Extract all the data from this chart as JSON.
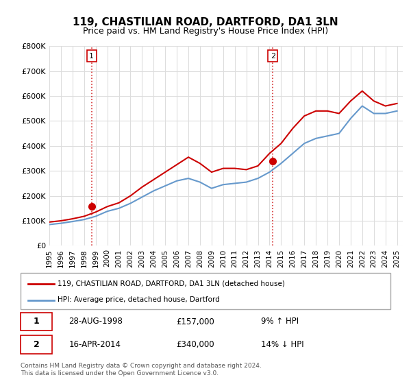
{
  "title": "119, CHASTILIAN ROAD, DARTFORD, DA1 3LN",
  "subtitle": "Price paid vs. HM Land Registry's House Price Index (HPI)",
  "ylabel_ticks": [
    "£0",
    "£100K",
    "£200K",
    "£300K",
    "£400K",
    "£500K",
    "£600K",
    "£700K",
    "£800K"
  ],
  "ytick_values": [
    0,
    100000,
    200000,
    300000,
    400000,
    500000,
    600000,
    700000,
    800000
  ],
  "ylim": [
    0,
    800000
  ],
  "xlim_start": 1995.0,
  "xlim_end": 2025.5,
  "sale1_x": 1998.65,
  "sale1_y": 157000,
  "sale1_label": "1",
  "sale2_x": 2014.29,
  "sale2_y": 340000,
  "sale2_label": "2",
  "line_color_red": "#cc0000",
  "line_color_blue": "#6699cc",
  "dot_color": "#cc0000",
  "grid_color": "#dddddd",
  "bg_color": "#ffffff",
  "legend_line1": "119, CHASTILIAN ROAD, DARTFORD, DA1 3LN (detached house)",
  "legend_line2": "HPI: Average price, detached house, Dartford",
  "table_row1_num": "1",
  "table_row1_date": "28-AUG-1998",
  "table_row1_price": "£157,000",
  "table_row1_hpi": "9% ↑ HPI",
  "table_row2_num": "2",
  "table_row2_date": "16-APR-2014",
  "table_row2_price": "£340,000",
  "table_row2_hpi": "14% ↓ HPI",
  "footer": "Contains HM Land Registry data © Crown copyright and database right 2024.\nThis data is licensed under the Open Government Licence v3.0.",
  "hpi_years": [
    1995,
    1996,
    1997,
    1998,
    1999,
    2000,
    2001,
    2002,
    2003,
    2004,
    2005,
    2006,
    2007,
    2008,
    2009,
    2010,
    2011,
    2012,
    2013,
    2014,
    2015,
    2016,
    2017,
    2018,
    2019,
    2020,
    2021,
    2022,
    2023,
    2024,
    2025
  ],
  "hpi_values": [
    85000,
    90000,
    97000,
    105000,
    118000,
    138000,
    150000,
    170000,
    195000,
    220000,
    240000,
    260000,
    270000,
    255000,
    230000,
    245000,
    250000,
    255000,
    270000,
    295000,
    330000,
    370000,
    410000,
    430000,
    440000,
    450000,
    510000,
    560000,
    530000,
    530000,
    540000
  ],
  "price_years": [
    1995,
    1996,
    1997,
    1998,
    1999,
    2000,
    2001,
    2002,
    2003,
    2004,
    2005,
    2006,
    2007,
    2008,
    2009,
    2010,
    2011,
    2012,
    2013,
    2014,
    2015,
    2016,
    2017,
    2018,
    2019,
    2020,
    2021,
    2022,
    2023,
    2024,
    2025
  ],
  "price_values": [
    95000,
    100000,
    108000,
    118000,
    135000,
    157000,
    172000,
    200000,
    235000,
    265000,
    295000,
    325000,
    355000,
    330000,
    295000,
    310000,
    310000,
    305000,
    320000,
    370000,
    410000,
    470000,
    520000,
    540000,
    540000,
    530000,
    580000,
    620000,
    580000,
    560000,
    570000
  ]
}
